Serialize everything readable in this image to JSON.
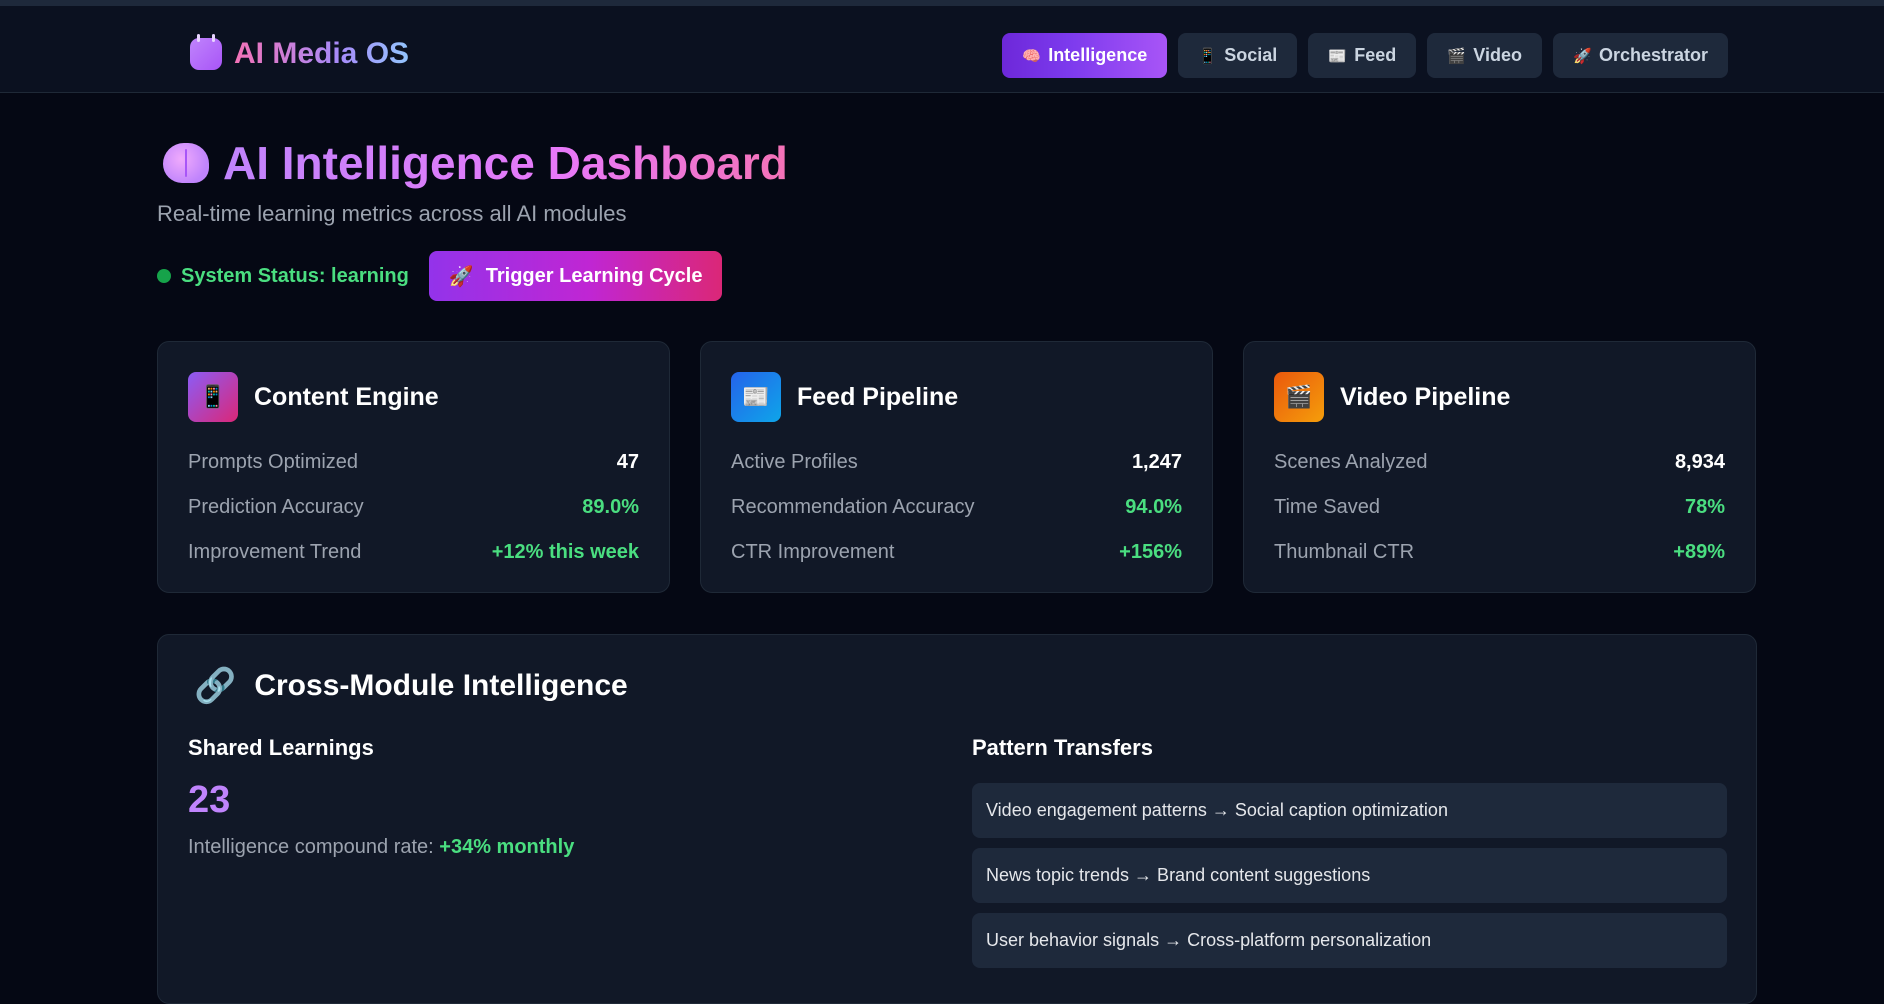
{
  "brand": {
    "name": "AI Media OS",
    "logo_icon": "robot-icon"
  },
  "nav": [
    {
      "label": "Intelligence",
      "icon": "🧠",
      "active": true
    },
    {
      "label": "Social",
      "icon": "📱",
      "active": false
    },
    {
      "label": "Feed",
      "icon": "📰",
      "active": false
    },
    {
      "label": "Video",
      "icon": "🎬",
      "active": false
    },
    {
      "label": "Orchestrator",
      "icon": "🚀",
      "active": false
    }
  ],
  "header": {
    "title": "AI Intelligence Dashboard",
    "title_icon": "brain-icon",
    "subtitle": "Real-time learning metrics across all AI modules"
  },
  "status": {
    "label": "System Status: learning",
    "color": "#4ade80"
  },
  "trigger": {
    "icon": "🚀",
    "label": "Trigger Learning Cycle"
  },
  "cards": [
    {
      "title": "Content Engine",
      "icon": "📱",
      "metrics": [
        {
          "label": "Prompts Optimized",
          "value": "47"
        },
        {
          "label": "Prediction Accuracy",
          "value": "89.0%"
        },
        {
          "label": "Improvement Trend",
          "value": "+12% this week"
        }
      ]
    },
    {
      "title": "Feed Pipeline",
      "icon": "📰",
      "metrics": [
        {
          "label": "Active Profiles",
          "value": "1,247"
        },
        {
          "label": "Recommendation Accuracy",
          "value": "94.0%"
        },
        {
          "label": "CTR Improvement",
          "value": "+156%"
        }
      ]
    },
    {
      "title": "Video Pipeline",
      "icon": "🎬",
      "metrics": [
        {
          "label": "Scenes Analyzed",
          "value": "8,934"
        },
        {
          "label": "Time Saved",
          "value": "78%"
        },
        {
          "label": "Thumbnail CTR",
          "value": "+89%"
        }
      ]
    }
  ],
  "cross": {
    "icon": "🔗",
    "title": "Cross-Module Intelligence",
    "shared": {
      "heading": "Shared Learnings",
      "count": "23",
      "compound_label": "Intelligence compound rate:",
      "compound_value": "+34% monthly"
    },
    "transfers": {
      "heading": "Pattern Transfers",
      "items": [
        "Video engagement patterns → Social caption optimization",
        "News topic trends → Brand content suggestions",
        "User behavior signals → Cross-platform personalization"
      ]
    }
  }
}
